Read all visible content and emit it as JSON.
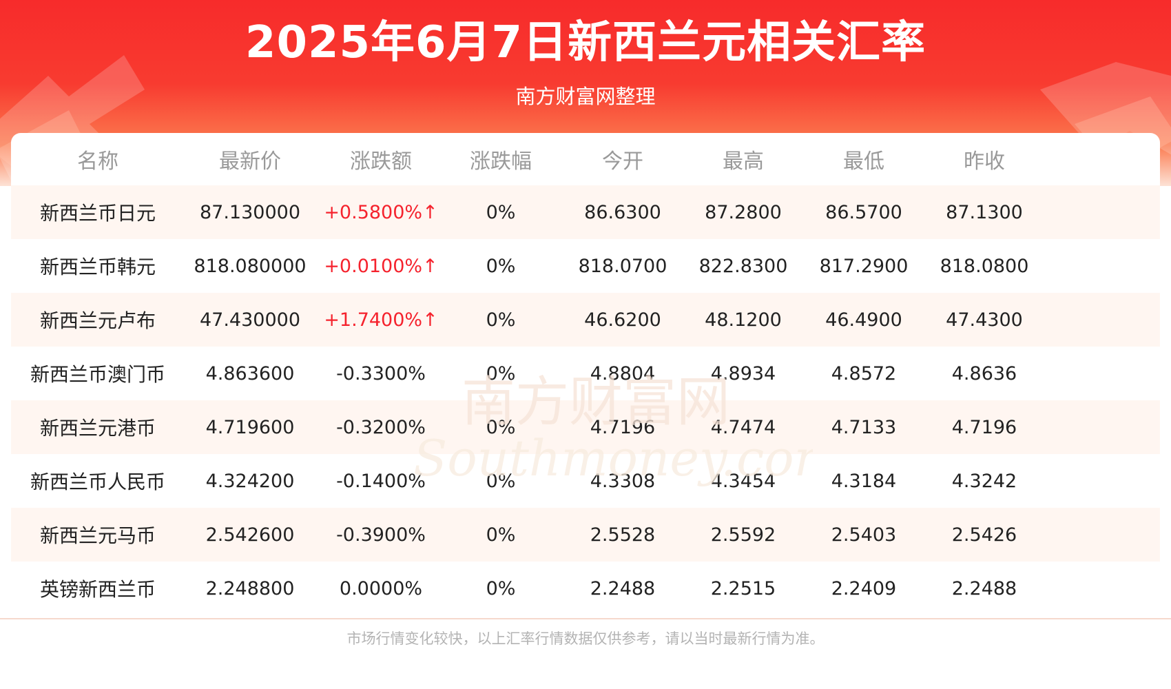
{
  "header": {
    "title": "2025年6月7日新西兰元相关汇率",
    "subtitle": "南方财富网整理"
  },
  "table": {
    "columns": [
      "名称",
      "最新价",
      "涨跌额",
      "涨跌幅",
      "今开",
      "最高",
      "最低",
      "昨收"
    ],
    "rows": [
      {
        "name": "新西兰币日元",
        "latest": "87.130000",
        "change": "+0.5800%↑",
        "pct": "0%",
        "open": "86.6300",
        "high": "87.2800",
        "low": "86.5700",
        "prev_close": "87.1300",
        "direction": "up"
      },
      {
        "name": "新西兰币韩元",
        "latest": "818.080000",
        "change": "+0.0100%↑",
        "pct": "0%",
        "open": "818.0700",
        "high": "822.8300",
        "low": "817.2900",
        "prev_close": "818.0800",
        "direction": "up"
      },
      {
        "name": "新西兰元卢布",
        "latest": "47.430000",
        "change": "+1.7400%↑",
        "pct": "0%",
        "open": "46.6200",
        "high": "48.1200",
        "low": "46.4900",
        "prev_close": "47.4300",
        "direction": "up"
      },
      {
        "name": "新西兰币澳门币",
        "latest": "4.863600",
        "change": "-0.3300%",
        "pct": "0%",
        "open": "4.8804",
        "high": "4.8934",
        "low": "4.8572",
        "prev_close": "4.8636",
        "direction": "down"
      },
      {
        "name": "新西兰元港币",
        "latest": "4.719600",
        "change": "-0.3200%",
        "pct": "0%",
        "open": "4.7196",
        "high": "4.7474",
        "low": "4.7133",
        "prev_close": "4.7196",
        "direction": "down"
      },
      {
        "name": "新西兰币人民币",
        "latest": "4.324200",
        "change": "-0.1400%",
        "pct": "0%",
        "open": "4.3308",
        "high": "4.3454",
        "low": "4.3184",
        "prev_close": "4.3242",
        "direction": "down"
      },
      {
        "name": "新西兰元马币",
        "latest": "2.542600",
        "change": "-0.3900%",
        "pct": "0%",
        "open": "2.5528",
        "high": "2.5592",
        "low": "2.5403",
        "prev_close": "2.5426",
        "direction": "down"
      },
      {
        "name": "英镑新西兰币",
        "latest": "2.248800",
        "change": "0.0000%",
        "pct": "0%",
        "open": "2.2488",
        "high": "2.2515",
        "low": "2.2409",
        "prev_close": "2.2488",
        "direction": "flat"
      }
    ]
  },
  "footnote": "市场行情变化较快，以上汇率行情数据仅供参考，请以当时最新行情为准。",
  "watermark": {
    "text_cn": "南方财富网",
    "text_en": "Southmoney.com"
  },
  "colors": {
    "banner_red": "#f72b2b",
    "up_red": "#f5222d",
    "alt_row": "#fff6f1",
    "header_text": "#999999"
  }
}
